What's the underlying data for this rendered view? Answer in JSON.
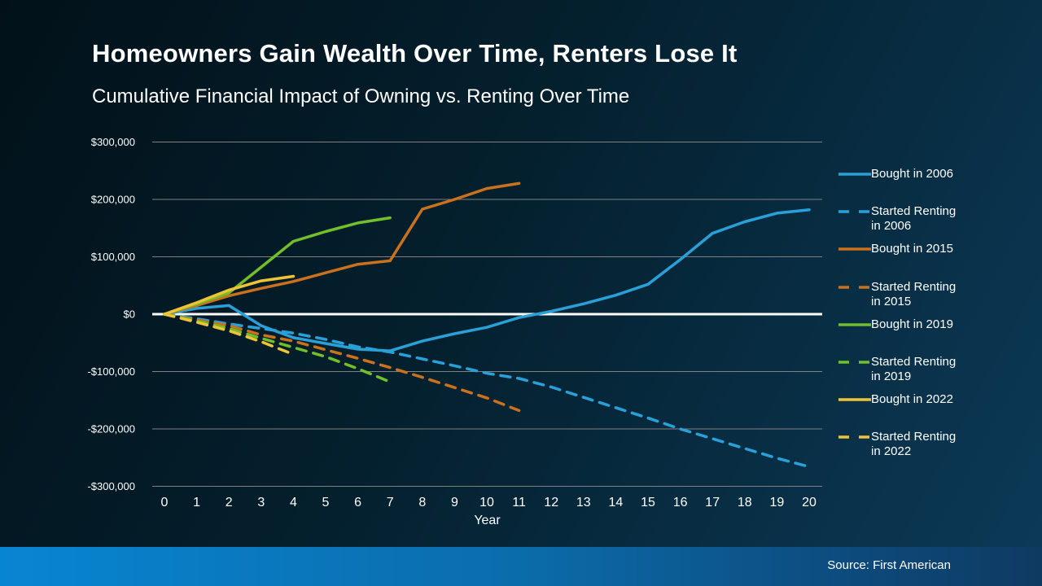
{
  "slide": {
    "title": "Homeowners Gain Wealth Over Time, Renters Lose It",
    "subtitle": "Cumulative Financial Impact of Owning vs. Renting Over Time",
    "source": "Source: First American"
  },
  "colors": {
    "blue": "#2aa0d8",
    "orange": "#c9711c",
    "green": "#70bf2b",
    "yellow": "#eec437",
    "grid": "#808080",
    "zero_line": "#ffffff",
    "text": "#ffffff",
    "footer_left": "#0885d2",
    "footer_right": "#0e3a61"
  },
  "chart_data": {
    "type": "line",
    "title": "Cumulative Financial Impact of Owning vs. Renting Over Time",
    "xlabel": "Year",
    "ylabel": "",
    "xlim": [
      0,
      20
    ],
    "ylim": [
      -300000,
      300000
    ],
    "grid": true,
    "legend_position": "right",
    "x_ticks": [
      0,
      1,
      2,
      3,
      4,
      5,
      6,
      7,
      8,
      9,
      10,
      11,
      12,
      13,
      14,
      15,
      16,
      17,
      18,
      19,
      20
    ],
    "y_ticks": [
      {
        "label": "$300,000",
        "value": 300000
      },
      {
        "label": "$200,000",
        "value": 200000
      },
      {
        "label": "$100,000",
        "value": 100000
      },
      {
        "label": "$0",
        "value": 0
      },
      {
        "label": "-$100,000",
        "value": -100000
      },
      {
        "label": "-$200,000",
        "value": -200000
      },
      {
        "label": "-$300,000",
        "value": -300000
      }
    ],
    "series": [
      {
        "name": "Bought in 2006",
        "slug": "bought-2006",
        "legend_lines": [
          "Bought in 2006"
        ],
        "color": "blue",
        "style": "solid",
        "x": [
          0,
          1,
          2,
          3,
          4,
          5,
          6,
          7,
          8,
          9,
          10,
          11,
          12,
          13,
          14,
          15,
          16,
          17,
          18,
          19,
          20
        ],
        "values": [
          0,
          10000,
          15000,
          -20000,
          -41000,
          -51000,
          -61000,
          -64000,
          -47000,
          -34000,
          -23000,
          -6000,
          5000,
          18000,
          33000,
          52000,
          95000,
          141000,
          161000,
          176000,
          182000
        ]
      },
      {
        "name": "Started Renting in 2006",
        "slug": "renting-2006",
        "legend_lines": [
          "Started Renting",
          "in 2006"
        ],
        "color": "blue",
        "style": "dashed",
        "x": [
          0,
          1,
          2,
          3,
          4,
          5,
          6,
          7,
          8,
          9,
          10,
          11,
          12,
          13,
          14,
          15,
          16,
          17,
          18,
          19,
          20
        ],
        "values": [
          0,
          -8000,
          -17000,
          -25000,
          -33000,
          -44000,
          -57000,
          -66000,
          -78000,
          -90000,
          -103000,
          -112000,
          -127000,
          -145000,
          -163000,
          -181000,
          -200000,
          -217000,
          -234000,
          -251000,
          -266000
        ]
      },
      {
        "name": "Bought in 2015",
        "slug": "bought-2015",
        "legend_lines": [
          "Bought in 2015"
        ],
        "color": "orange",
        "style": "solid",
        "x": [
          0,
          1,
          2,
          3,
          4,
          5,
          6,
          7,
          8,
          9,
          10,
          11
        ],
        "values": [
          0,
          15000,
          32000,
          45000,
          57000,
          72000,
          87000,
          93000,
          183000,
          200000,
          219000,
          228000
        ]
      },
      {
        "name": "Started Renting in 2015",
        "slug": "renting-2015",
        "legend_lines": [
          "Started Renting",
          "in 2015"
        ],
        "color": "orange",
        "style": "dashed",
        "x": [
          0,
          1,
          2,
          3,
          4,
          5,
          6,
          7,
          8,
          9,
          10,
          11
        ],
        "values": [
          0,
          -10000,
          -20000,
          -36000,
          -47000,
          -62000,
          -77000,
          -93000,
          -110000,
          -128000,
          -146000,
          -168000
        ]
      },
      {
        "name": "Bought in 2019",
        "slug": "bought-2019",
        "legend_lines": [
          "Bought in 2019"
        ],
        "color": "green",
        "style": "solid",
        "x": [
          0,
          1,
          2,
          3,
          4,
          5,
          6,
          7
        ],
        "values": [
          0,
          18000,
          37000,
          82000,
          127000,
          144000,
          159000,
          168000
        ]
      },
      {
        "name": "Started Renting in 2019",
        "slug": "renting-2019",
        "legend_lines": [
          "Started Renting",
          "in 2019"
        ],
        "color": "green",
        "style": "dashed",
        "x": [
          0,
          1,
          2,
          3,
          4,
          5,
          6,
          7
        ],
        "values": [
          0,
          -12000,
          -25000,
          -42000,
          -58000,
          -74000,
          -95000,
          -118000
        ]
      },
      {
        "name": "Bought in 2022",
        "slug": "bought-2022",
        "legend_lines": [
          "Bought in 2022"
        ],
        "color": "yellow",
        "style": "solid",
        "x": [
          0,
          1,
          2,
          3,
          4
        ],
        "values": [
          0,
          20000,
          42000,
          58000,
          66000
        ]
      },
      {
        "name": "Started Renting in 2022",
        "slug": "renting-2022",
        "legend_lines": [
          "Started Renting",
          "in 2022"
        ],
        "color": "yellow",
        "style": "dashed",
        "x": [
          0,
          1,
          2,
          3,
          4
        ],
        "values": [
          0,
          -14000,
          -29000,
          -48000,
          -70000
        ]
      }
    ]
  }
}
